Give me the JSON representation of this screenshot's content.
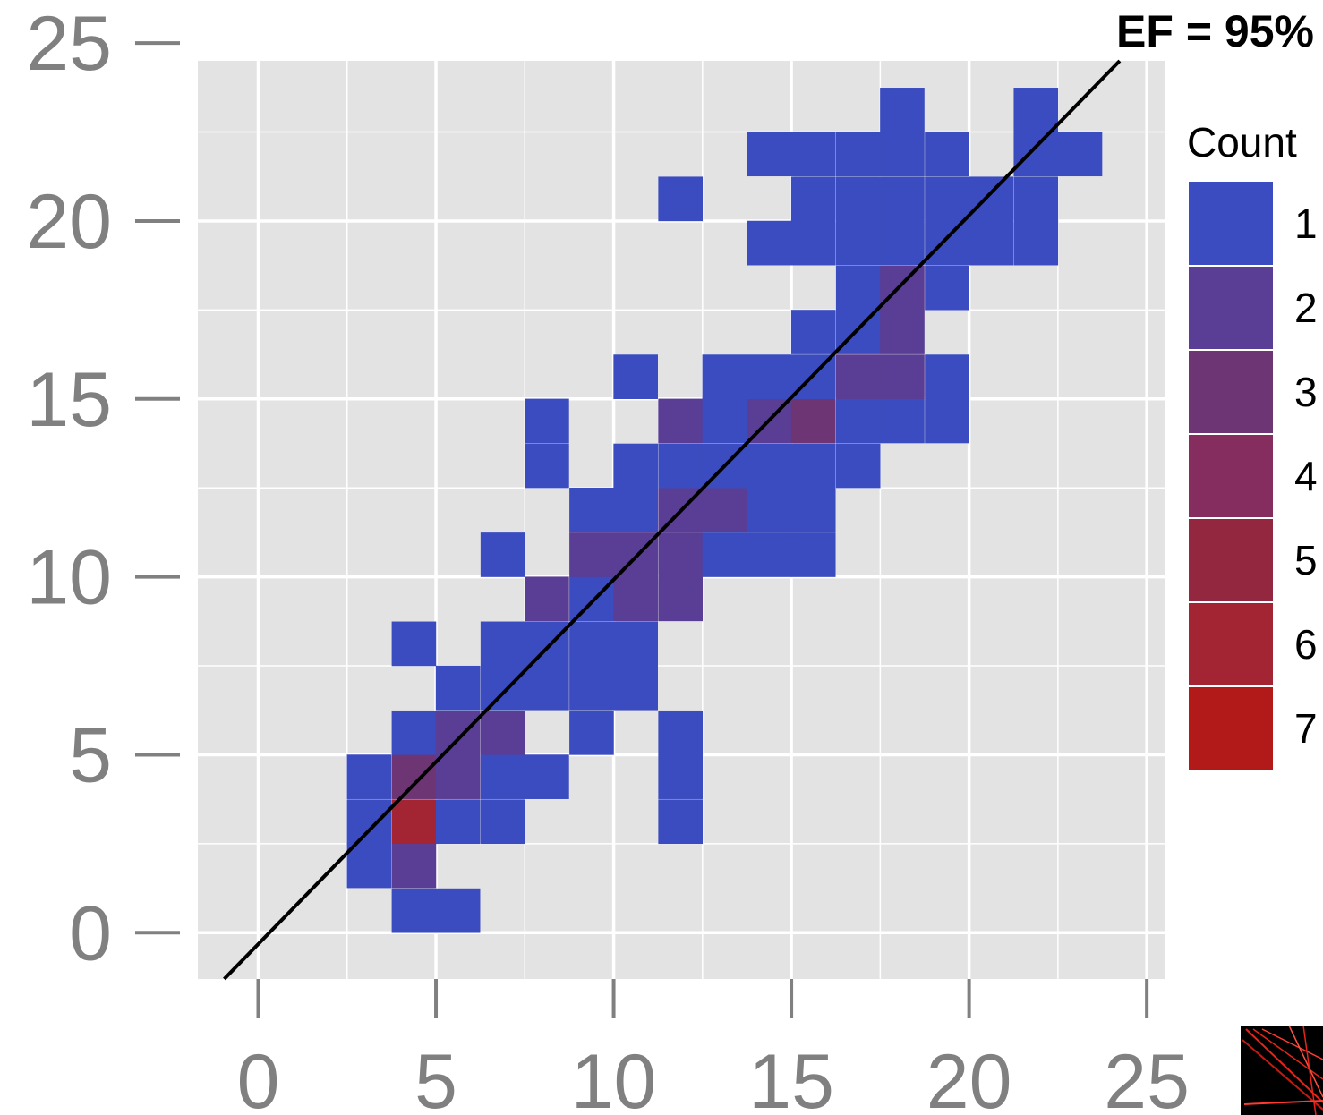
{
  "chart_data": {
    "type": "heatmap",
    "annotation": "EF = 95%",
    "xlabel": "",
    "ylabel": "",
    "xlim": [
      -1.7,
      25.5
    ],
    "ylim": [
      -1.3,
      24.5
    ],
    "x_ticks": [
      "0",
      "5",
      "10",
      "15",
      "20",
      "25"
    ],
    "y_ticks": [
      "0",
      "5",
      "10",
      "15",
      "20",
      "25"
    ],
    "bin_width": 1.25,
    "grid": true,
    "legend_title": "Count",
    "legend_position": "right",
    "legend_levels": [
      {
        "label": "1",
        "color": "#3a4cbf"
      },
      {
        "label": "2",
        "color": "#5a3e95"
      },
      {
        "label": "3",
        "color": "#6e3575"
      },
      {
        "label": "4",
        "color": "#842d5e"
      },
      {
        "label": "5",
        "color": "#93273f"
      },
      {
        "label": "6",
        "color": "#a32432"
      },
      {
        "label": "7",
        "color": "#b21a1a"
      }
    ],
    "fit_line": {
      "slope": 1.024,
      "intercept": -0.32
    },
    "bins": [
      {
        "x": 4.38,
        "y": 0.62,
        "count": 1
      },
      {
        "x": 5.62,
        "y": 0.62,
        "count": 1
      },
      {
        "x": 3.12,
        "y": 1.88,
        "count": 1
      },
      {
        "x": 4.38,
        "y": 1.88,
        "count": 2
      },
      {
        "x": 3.12,
        "y": 3.12,
        "count": 1
      },
      {
        "x": 4.38,
        "y": 3.12,
        "count": 6
      },
      {
        "x": 5.62,
        "y": 3.12,
        "count": 1
      },
      {
        "x": 6.88,
        "y": 3.12,
        "count": 1
      },
      {
        "x": 11.88,
        "y": 3.12,
        "count": 1
      },
      {
        "x": 3.12,
        "y": 4.38,
        "count": 1
      },
      {
        "x": 4.38,
        "y": 4.38,
        "count": 3
      },
      {
        "x": 5.62,
        "y": 4.38,
        "count": 2
      },
      {
        "x": 6.88,
        "y": 4.38,
        "count": 1
      },
      {
        "x": 8.12,
        "y": 4.38,
        "count": 1
      },
      {
        "x": 11.88,
        "y": 4.38,
        "count": 1
      },
      {
        "x": 4.38,
        "y": 5.62,
        "count": 1
      },
      {
        "x": 5.62,
        "y": 5.62,
        "count": 2
      },
      {
        "x": 6.88,
        "y": 5.62,
        "count": 2
      },
      {
        "x": 9.38,
        "y": 5.62,
        "count": 1
      },
      {
        "x": 11.88,
        "y": 5.62,
        "count": 1
      },
      {
        "x": 5.62,
        "y": 6.88,
        "count": 1
      },
      {
        "x": 6.88,
        "y": 6.88,
        "count": 1
      },
      {
        "x": 8.12,
        "y": 6.88,
        "count": 1
      },
      {
        "x": 9.38,
        "y": 6.88,
        "count": 1
      },
      {
        "x": 10.62,
        "y": 6.88,
        "count": 1
      },
      {
        "x": 4.38,
        "y": 8.12,
        "count": 1
      },
      {
        "x": 6.88,
        "y": 8.12,
        "count": 1
      },
      {
        "x": 8.12,
        "y": 8.12,
        "count": 1
      },
      {
        "x": 9.38,
        "y": 8.12,
        "count": 1
      },
      {
        "x": 10.62,
        "y": 8.12,
        "count": 1
      },
      {
        "x": 8.12,
        "y": 9.38,
        "count": 2
      },
      {
        "x": 9.38,
        "y": 9.38,
        "count": 1
      },
      {
        "x": 10.62,
        "y": 9.38,
        "count": 2
      },
      {
        "x": 11.88,
        "y": 9.38,
        "count": 2
      },
      {
        "x": 6.88,
        "y": 10.62,
        "count": 1
      },
      {
        "x": 9.38,
        "y": 10.62,
        "count": 2
      },
      {
        "x": 10.62,
        "y": 10.62,
        "count": 2
      },
      {
        "x": 11.88,
        "y": 10.62,
        "count": 2
      },
      {
        "x": 13.12,
        "y": 10.62,
        "count": 1
      },
      {
        "x": 14.38,
        "y": 10.62,
        "count": 1
      },
      {
        "x": 15.62,
        "y": 10.62,
        "count": 1
      },
      {
        "x": 9.38,
        "y": 11.88,
        "count": 1
      },
      {
        "x": 10.62,
        "y": 11.88,
        "count": 1
      },
      {
        "x": 11.88,
        "y": 11.88,
        "count": 2
      },
      {
        "x": 13.12,
        "y": 11.88,
        "count": 2
      },
      {
        "x": 14.38,
        "y": 11.88,
        "count": 1
      },
      {
        "x": 15.62,
        "y": 11.88,
        "count": 1
      },
      {
        "x": 8.12,
        "y": 13.12,
        "count": 1
      },
      {
        "x": 10.62,
        "y": 13.12,
        "count": 1
      },
      {
        "x": 11.88,
        "y": 13.12,
        "count": 1
      },
      {
        "x": 13.12,
        "y": 13.12,
        "count": 1
      },
      {
        "x": 14.38,
        "y": 13.12,
        "count": 1
      },
      {
        "x": 15.62,
        "y": 13.12,
        "count": 1
      },
      {
        "x": 16.88,
        "y": 13.12,
        "count": 1
      },
      {
        "x": 8.12,
        "y": 14.38,
        "count": 1
      },
      {
        "x": 11.88,
        "y": 14.38,
        "count": 2
      },
      {
        "x": 13.12,
        "y": 14.38,
        "count": 1
      },
      {
        "x": 14.38,
        "y": 14.38,
        "count": 2
      },
      {
        "x": 15.62,
        "y": 14.38,
        "count": 3
      },
      {
        "x": 16.88,
        "y": 14.38,
        "count": 1
      },
      {
        "x": 18.12,
        "y": 14.38,
        "count": 1
      },
      {
        "x": 19.38,
        "y": 14.38,
        "count": 1
      },
      {
        "x": 10.62,
        "y": 15.62,
        "count": 1
      },
      {
        "x": 13.12,
        "y": 15.62,
        "count": 1
      },
      {
        "x": 14.38,
        "y": 15.62,
        "count": 1
      },
      {
        "x": 15.62,
        "y": 15.62,
        "count": 1
      },
      {
        "x": 16.88,
        "y": 15.62,
        "count": 2
      },
      {
        "x": 18.12,
        "y": 15.62,
        "count": 2
      },
      {
        "x": 19.38,
        "y": 15.62,
        "count": 1
      },
      {
        "x": 15.62,
        "y": 16.88,
        "count": 1
      },
      {
        "x": 16.88,
        "y": 16.88,
        "count": 1
      },
      {
        "x": 18.12,
        "y": 16.88,
        "count": 2
      },
      {
        "x": 16.88,
        "y": 18.12,
        "count": 1
      },
      {
        "x": 18.12,
        "y": 18.12,
        "count": 2
      },
      {
        "x": 19.38,
        "y": 18.12,
        "count": 1
      },
      {
        "x": 14.38,
        "y": 19.38,
        "count": 1
      },
      {
        "x": 15.62,
        "y": 19.38,
        "count": 1
      },
      {
        "x": 16.88,
        "y": 19.38,
        "count": 1
      },
      {
        "x": 18.12,
        "y": 19.38,
        "count": 1
      },
      {
        "x": 19.38,
        "y": 19.38,
        "count": 1
      },
      {
        "x": 20.62,
        "y": 19.38,
        "count": 1
      },
      {
        "x": 21.88,
        "y": 19.38,
        "count": 1
      },
      {
        "x": 11.88,
        "y": 20.62,
        "count": 1
      },
      {
        "x": 15.62,
        "y": 20.62,
        "count": 1
      },
      {
        "x": 16.88,
        "y": 20.62,
        "count": 1
      },
      {
        "x": 18.12,
        "y": 20.62,
        "count": 1
      },
      {
        "x": 19.38,
        "y": 20.62,
        "count": 1
      },
      {
        "x": 20.62,
        "y": 20.62,
        "count": 1
      },
      {
        "x": 21.88,
        "y": 20.62,
        "count": 1
      },
      {
        "x": 14.38,
        "y": 21.88,
        "count": 1
      },
      {
        "x": 15.62,
        "y": 21.88,
        "count": 1
      },
      {
        "x": 16.88,
        "y": 21.88,
        "count": 1
      },
      {
        "x": 18.12,
        "y": 21.88,
        "count": 1
      },
      {
        "x": 19.38,
        "y": 21.88,
        "count": 1
      },
      {
        "x": 21.88,
        "y": 21.88,
        "count": 1
      },
      {
        "x": 23.12,
        "y": 21.88,
        "count": 1
      },
      {
        "x": 18.12,
        "y": 23.12,
        "count": 1
      },
      {
        "x": 21.88,
        "y": 23.12,
        "count": 1
      }
    ]
  },
  "colors": {
    "panel_background": "#e3e3e3",
    "grid": "#ffffff",
    "axis_text": "#808080",
    "fit_line": "#000000"
  }
}
